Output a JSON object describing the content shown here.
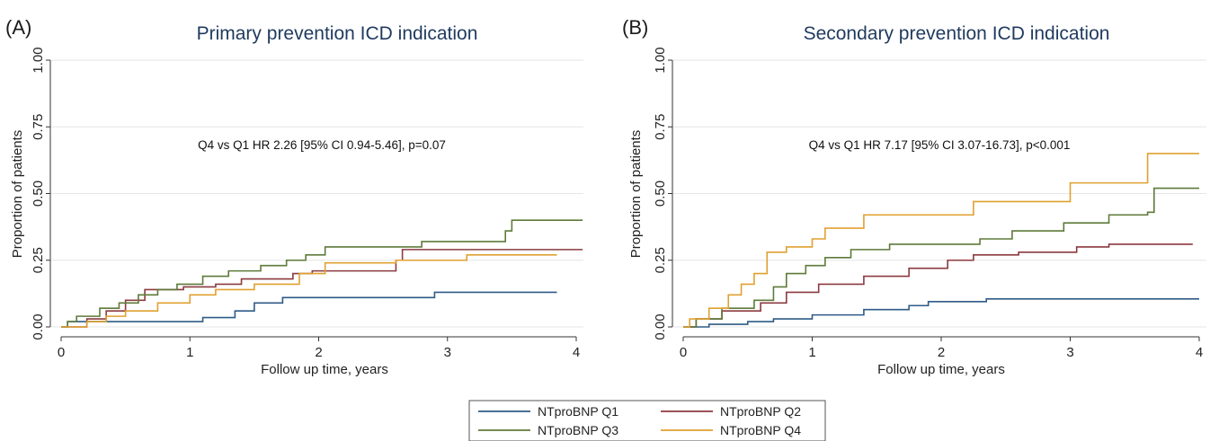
{
  "chart_data": [
    {
      "type": "line",
      "panel_label": "(A)",
      "title": "Primary prevention ICD indication",
      "annotation": "Q4 vs Q1 HR 2.26 [95% CI 0.94-5.46], p=0.07",
      "xlabel": "Follow up time, years",
      "ylabel": "Proportion of patients",
      "xlim": [
        0,
        4
      ],
      "ylim": [
        0,
        1
      ],
      "xticks": [
        0,
        1,
        2,
        3,
        4
      ],
      "yticks": [
        0,
        0.25,
        0.5,
        0.75,
        1
      ],
      "ytick_labels": [
        "0.00",
        "0.25",
        "0.50",
        "0.75",
        "1.00"
      ],
      "grid": "horizontal",
      "series": [
        {
          "name": "NTproBNP Q1",
          "color": "#2f5b86",
          "x": [
            0,
            0.05,
            1.1,
            1.35,
            1.5,
            1.72,
            2.9,
            3.85
          ],
          "y": [
            0,
            0.02,
            0.035,
            0.06,
            0.09,
            0.11,
            0.13,
            0.13
          ]
        },
        {
          "name": "NTproBNP Q2",
          "color": "#8b3a3f",
          "x": [
            0,
            0.2,
            0.35,
            0.5,
            0.65,
            0.95,
            1.2,
            1.4,
            1.8,
            1.95,
            2.6,
            2.65,
            4.05
          ],
          "y": [
            0,
            0.03,
            0.06,
            0.1,
            0.14,
            0.15,
            0.16,
            0.18,
            0.2,
            0.21,
            0.25,
            0.29,
            0.29
          ]
        },
        {
          "name": "NTproBNP Q3",
          "color": "#5e7a3a",
          "x": [
            0,
            0.05,
            0.12,
            0.3,
            0.45,
            0.6,
            0.75,
            0.9,
            1.1,
            1.3,
            1.55,
            1.75,
            1.9,
            2.05,
            2.55,
            2.8,
            3.45,
            3.5,
            4.05
          ],
          "y": [
            0,
            0.02,
            0.04,
            0.07,
            0.09,
            0.12,
            0.14,
            0.16,
            0.19,
            0.21,
            0.23,
            0.25,
            0.27,
            0.3,
            0.3,
            0.32,
            0.36,
            0.4,
            0.4
          ]
        },
        {
          "name": "NTproBNP Q4",
          "color": "#e0a030",
          "x": [
            0,
            0.2,
            0.35,
            0.5,
            0.75,
            1.0,
            1.2,
            1.5,
            1.85,
            2.05,
            2.6,
            3.15,
            3.85
          ],
          "y": [
            0,
            0.02,
            0.04,
            0.06,
            0.09,
            0.12,
            0.14,
            0.16,
            0.2,
            0.24,
            0.25,
            0.27,
            0.27
          ]
        }
      ]
    },
    {
      "type": "line",
      "panel_label": "(B)",
      "title": "Secondary prevention ICD indication",
      "annotation": "Q4 vs Q1 HR 7.17 [95% CI  3.07-16.73], p<0.001",
      "xlabel": "Follow up time, years",
      "ylabel": "Proportion of patients",
      "xlim": [
        0,
        4
      ],
      "ylim": [
        0,
        1
      ],
      "xticks": [
        0,
        1,
        2,
        3,
        4
      ],
      "yticks": [
        0,
        0.25,
        0.5,
        0.75,
        1
      ],
      "ytick_labels": [
        "0.00",
        "0.25",
        "0.50",
        "0.75",
        "1.00"
      ],
      "grid": "horizontal",
      "series": [
        {
          "name": "NTproBNP Q1",
          "color": "#2f5b86",
          "x": [
            0,
            0.2,
            0.5,
            0.7,
            1.0,
            1.4,
            1.75,
            1.9,
            2.35,
            4.0
          ],
          "y": [
            0,
            0.01,
            0.02,
            0.03,
            0.045,
            0.065,
            0.08,
            0.095,
            0.105,
            0.105
          ]
        },
        {
          "name": "NTproBNP Q2",
          "color": "#8b3a3f",
          "x": [
            0,
            0.1,
            0.3,
            0.6,
            0.8,
            1.05,
            1.4,
            1.75,
            2.05,
            2.25,
            2.6,
            3.05,
            3.3,
            3.95
          ],
          "y": [
            0,
            0.03,
            0.06,
            0.09,
            0.13,
            0.16,
            0.19,
            0.22,
            0.25,
            0.27,
            0.28,
            0.3,
            0.31,
            0.31
          ]
        },
        {
          "name": "NTproBNP Q3",
          "color": "#5e7a3a",
          "x": [
            0,
            0.1,
            0.3,
            0.55,
            0.7,
            0.8,
            0.95,
            1.1,
            1.3,
            1.6,
            2.0,
            2.3,
            2.55,
            2.95,
            3.3,
            3.6,
            3.65,
            4.0
          ],
          "y": [
            0,
            0.03,
            0.07,
            0.1,
            0.15,
            0.2,
            0.23,
            0.26,
            0.29,
            0.31,
            0.31,
            0.33,
            0.36,
            0.39,
            0.42,
            0.43,
            0.52,
            0.52
          ]
        },
        {
          "name": "NTproBNP Q4",
          "color": "#e0a030",
          "x": [
            0,
            0.05,
            0.2,
            0.35,
            0.45,
            0.55,
            0.65,
            0.8,
            1.0,
            1.1,
            1.4,
            1.85,
            2.0,
            2.25,
            2.95,
            3.0,
            3.55,
            3.6,
            4.0
          ],
          "y": [
            0,
            0.03,
            0.07,
            0.12,
            0.16,
            0.2,
            0.28,
            0.3,
            0.33,
            0.37,
            0.42,
            0.42,
            0.42,
            0.47,
            0.47,
            0.54,
            0.54,
            0.65,
            0.65
          ]
        }
      ]
    }
  ],
  "legend": {
    "entries": [
      {
        "label": "NTproBNP Q1",
        "color": "#2f5b86"
      },
      {
        "label": "NTproBNP Q2",
        "color": "#8b3a3f"
      },
      {
        "label": "NTproBNP Q3",
        "color": "#5e7a3a"
      },
      {
        "label": "NTproBNP Q4",
        "color": "#e0a030"
      }
    ]
  }
}
